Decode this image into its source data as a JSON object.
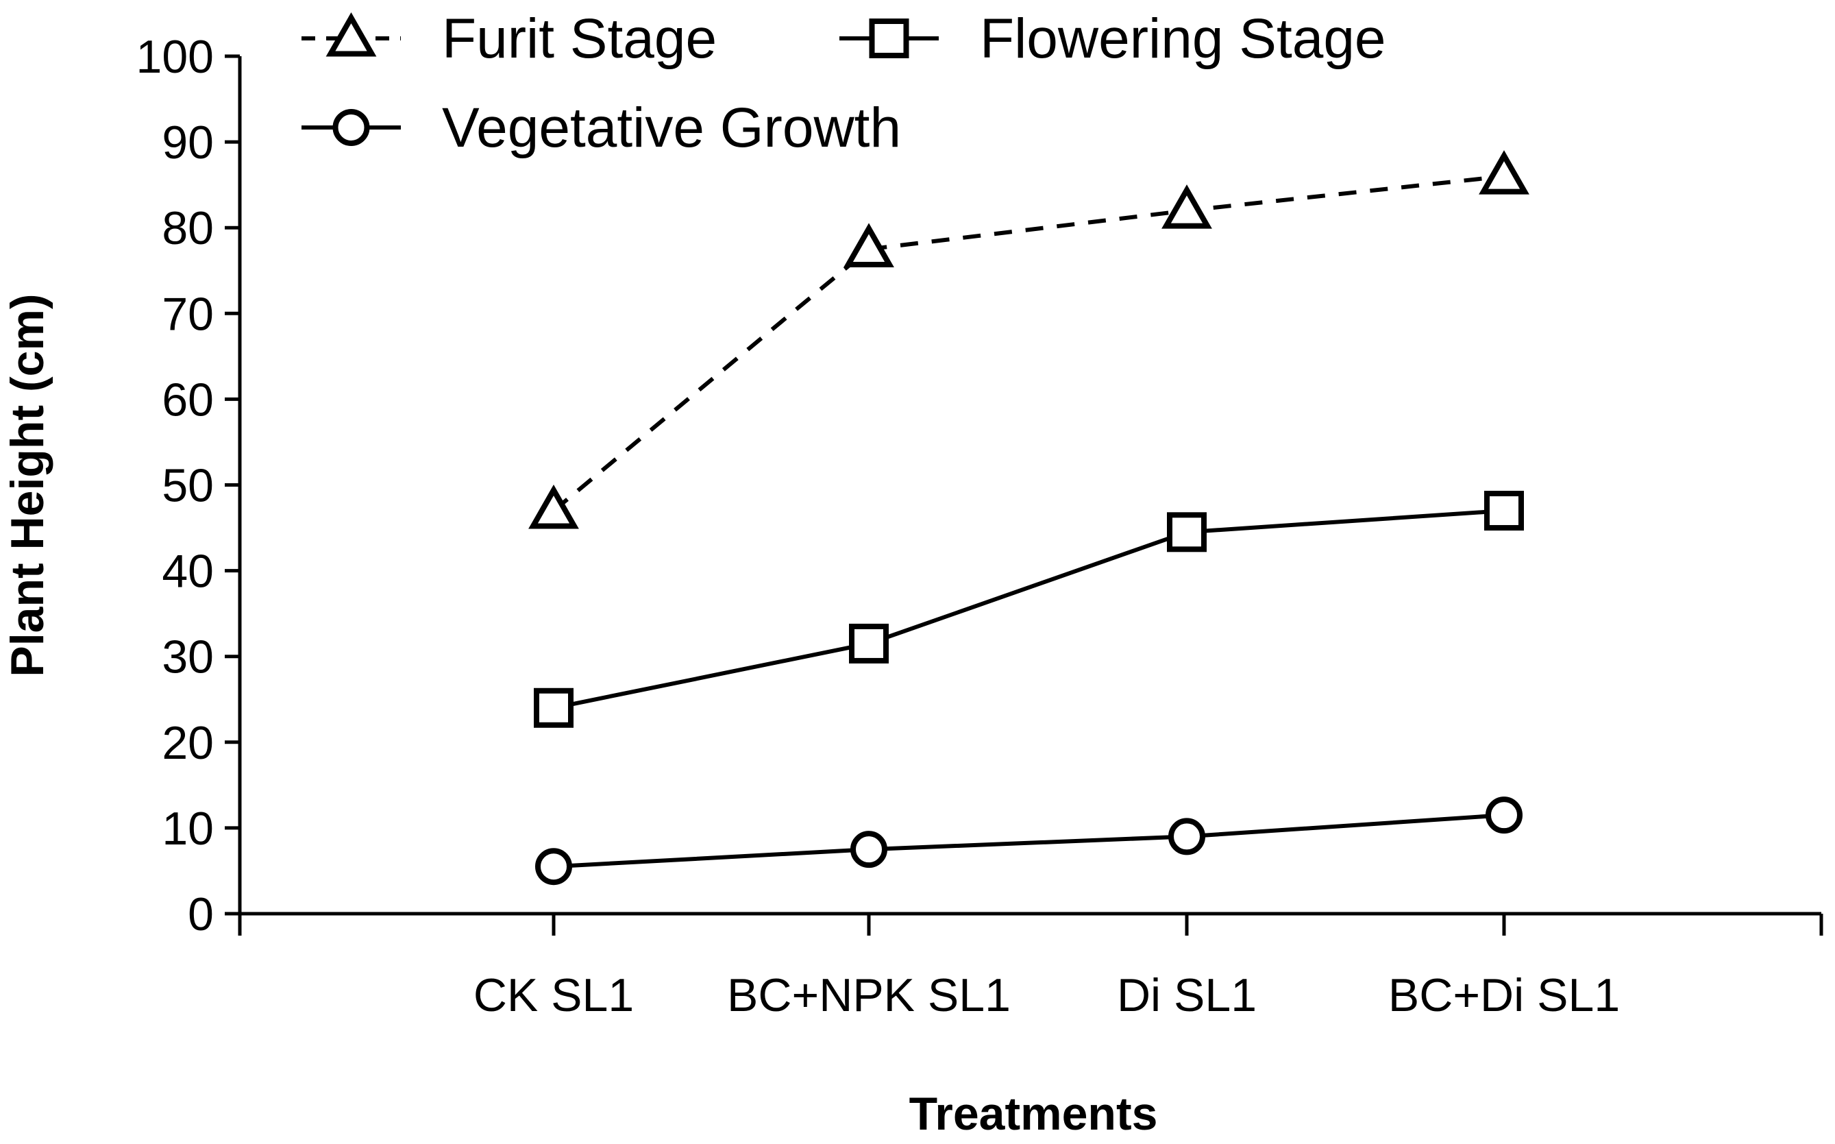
{
  "chart_data": {
    "type": "line",
    "xlabel": "Treatments",
    "ylabel": "Plant Height (cm)",
    "ylim": [
      0,
      100
    ],
    "yticks": [
      "0",
      "10",
      "20",
      "30",
      "40",
      "50",
      "60",
      "70",
      "80",
      "90",
      "100"
    ],
    "categories": [
      "CK SL1",
      "BC+NPK SL1",
      "Di SL1",
      "BC+Di SL1"
    ],
    "series": [
      {
        "name": "Furit Stage",
        "marker": "triangle",
        "dashed": true,
        "values": [
          47,
          77.5,
          82,
          86
        ]
      },
      {
        "name": "Flowering Stage",
        "marker": "square",
        "dashed": false,
        "values": [
          24,
          31.5,
          44.5,
          47
        ]
      },
      {
        "name": "Vegetative Growth",
        "marker": "circle",
        "dashed": false,
        "values": [
          5.5,
          7.5,
          9,
          11.5
        ]
      }
    ],
    "legend": "top"
  }
}
